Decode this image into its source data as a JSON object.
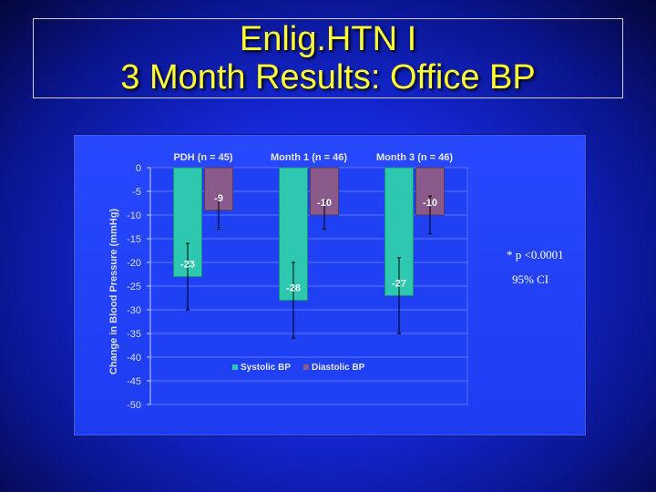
{
  "slide": {
    "title_line1": "Enlig.HTN I",
    "title_line2": "3 Month Results: Office BP"
  },
  "notes": {
    "pvalue": "* p <0.0001",
    "ci": "95% CI"
  },
  "colors": {
    "systolic": "#2ec7b0",
    "diastolic": "#8a5a8a",
    "title": "#ffff33"
  },
  "chart_data": {
    "type": "bar",
    "categories": [
      "PDH (n = 45)",
      "Month 1 (n = 46)",
      "Month 3 (n = 46)"
    ],
    "series": [
      {
        "name": "Systolic BP",
        "values": [
          -23,
          -28,
          -27
        ],
        "ci": [
          [
            -30,
            -16
          ],
          [
            -36,
            -20
          ],
          [
            -35,
            -19
          ]
        ],
        "labels": [
          "-23",
          "-28",
          "-27"
        ]
      },
      {
        "name": "Diastolic BP",
        "values": [
          -9,
          -10,
          -10
        ],
        "ci": [
          [
            -13,
            -6
          ],
          [
            -13,
            -7
          ],
          [
            -14,
            -6
          ]
        ],
        "labels": [
          "-9",
          "-10",
          "-10"
        ]
      }
    ],
    "ylabel": "Change in Blood Pressure (mmHg)",
    "xlabel": "",
    "ylim": [
      -50,
      0
    ],
    "yticks": [
      0,
      -5,
      -10,
      -15,
      -20,
      -25,
      -30,
      -35,
      -40,
      -45,
      -50
    ],
    "ytick_labels": [
      "0",
      "-5",
      "-10",
      "-15",
      "-20",
      "-25",
      "-30",
      "-35",
      "-40",
      "-45",
      "-50"
    ],
    "grid": true,
    "legend_position": "bottom-center"
  }
}
